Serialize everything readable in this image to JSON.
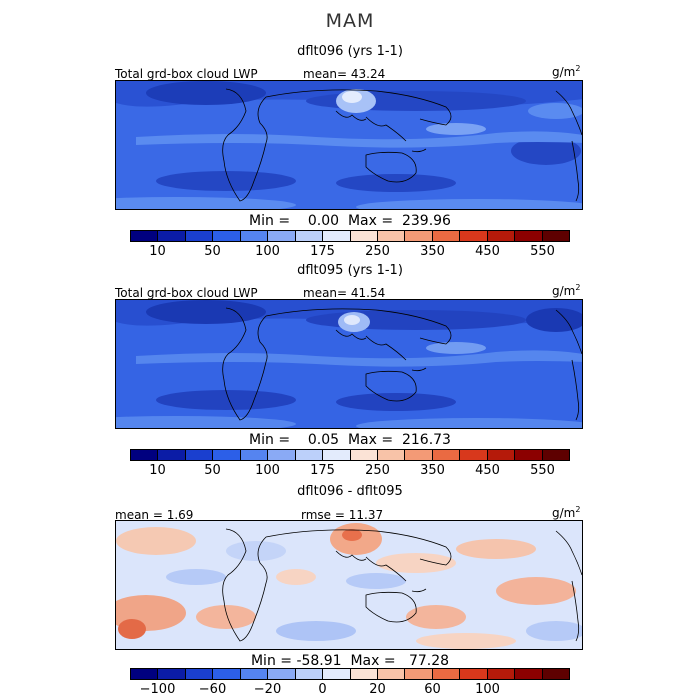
{
  "season": "MAM",
  "panels": [
    {
      "title": "dflt096 (yrs 1-1)",
      "field_label": "Total grd-box cloud LWP",
      "mean_text": "mean=  43.24",
      "units": "g/m",
      "units_exp": "2",
      "stats_text": "Min =    0.00  Max =  239.96"
    },
    {
      "title": "dflt095 (yrs 1-1)",
      "field_label": "Total grd-box cloud LWP",
      "mean_text": "mean=  41.54",
      "units": "g/m",
      "units_exp": "2",
      "stats_text": "Min =    0.05  Max =  216.73"
    },
    {
      "title": "dflt096 - dflt095",
      "mean_text": "mean =    1.69",
      "rmse_text": "rmse =   11.37",
      "units": "g/m",
      "units_exp": "2",
      "stats_text": "Min = -58.91  Max =   77.28"
    }
  ],
  "colorbar_abs": {
    "colors": [
      "#00007f",
      "#0b1ca6",
      "#1a3fcf",
      "#2c5fe8",
      "#5584f0",
      "#8aaaf5",
      "#bcd0fa",
      "#e3ebfc",
      "#fbe3d6",
      "#f8c3a8",
      "#f39a76",
      "#ea6a42",
      "#d8381c",
      "#b51a0a",
      "#8c0000",
      "#5e0000"
    ],
    "tick_labels": [
      "10",
      "50",
      "100",
      "175",
      "250",
      "350",
      "450",
      "550"
    ]
  },
  "colorbar_diff": {
    "colors": [
      "#00007f",
      "#0b1ca6",
      "#1a3fcf",
      "#2c5fe8",
      "#5584f0",
      "#8aaaf5",
      "#bcd0fa",
      "#e3ebfc",
      "#fbe3d6",
      "#f8c3a8",
      "#f39a76",
      "#ea6a42",
      "#d8381c",
      "#b51a0a",
      "#8c0000",
      "#5e0000"
    ],
    "tick_labels": [
      "−100",
      "−60",
      "−20",
      "0",
      "20",
      "60",
      "100"
    ]
  }
}
